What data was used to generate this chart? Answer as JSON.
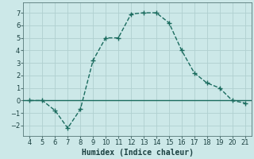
{
  "x": [
    4,
    5,
    6,
    7,
    8,
    9,
    10,
    11,
    12,
    13,
    14,
    15,
    16,
    17,
    18,
    19,
    20,
    21
  ],
  "y": [
    0,
    0,
    -0.8,
    -2.2,
    -0.7,
    3.2,
    5.0,
    5.0,
    6.9,
    7.0,
    7.0,
    6.2,
    4.0,
    2.2,
    1.4,
    1.0,
    0.0,
    -0.2
  ],
  "line_color": "#1a6b5e",
  "marker_style": "+",
  "marker_size": 4,
  "background_color": "#cce8e8",
  "grid_color": "#b0d0d0",
  "xlabel": "Humidex (Indice chaleur)",
  "ylabel": "",
  "xlim": [
    3.5,
    21.5
  ],
  "ylim": [
    -2.8,
    7.8
  ],
  "xticks": [
    4,
    5,
    6,
    7,
    8,
    9,
    10,
    11,
    12,
    13,
    14,
    15,
    16,
    17,
    18,
    19,
    20,
    21
  ],
  "yticks": [
    -2,
    -1,
    0,
    1,
    2,
    3,
    4,
    5,
    6,
    7
  ],
  "tick_fontsize": 6,
  "xlabel_fontsize": 7,
  "line_width": 1.0
}
